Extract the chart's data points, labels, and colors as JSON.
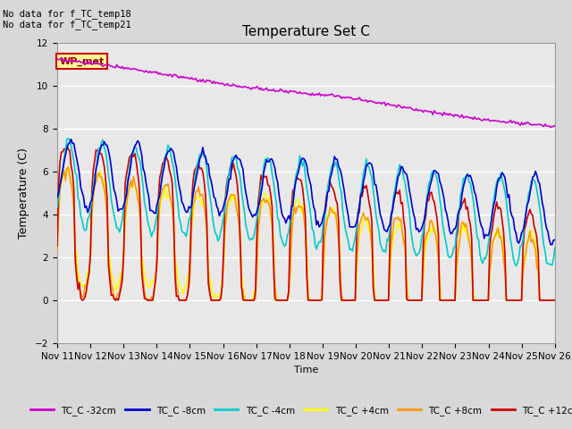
{
  "title": "Temperature Set C",
  "xlabel": "Time",
  "ylabel": "Temperature (C)",
  "ylim": [
    -2,
    12
  ],
  "note1": "No data for f_TC_temp18",
  "note2": "No data for f_TC_temp21",
  "wp_label": "WP_met",
  "xtick_labels": [
    "Nov 11",
    "Nov 12",
    "Nov 13",
    "Nov 14",
    "Nov 15",
    "Nov 16",
    "Nov 17",
    "Nov 18",
    "Nov 19",
    "Nov 20",
    "Nov 21",
    "Nov 22",
    "Nov 23",
    "Nov 24",
    "Nov 25",
    "Nov 26"
  ],
  "ytick_values": [
    -2,
    0,
    2,
    4,
    6,
    8,
    10,
    12
  ],
  "fig_facecolor": "#d8d8d8",
  "plot_bg_color": "#e8e8e8",
  "grid_color": "#ffffff",
  "series_colors": {
    "TC_C -32cm": "#cc00cc",
    "TC_C -8cm": "#0000cc",
    "TC_C -4cm": "#00cccc",
    "TC_C +4cm": "#ffff00",
    "TC_C +8cm": "#ff9900",
    "TC_C +12cm": "#cc0000"
  },
  "linewidth": 1.2
}
